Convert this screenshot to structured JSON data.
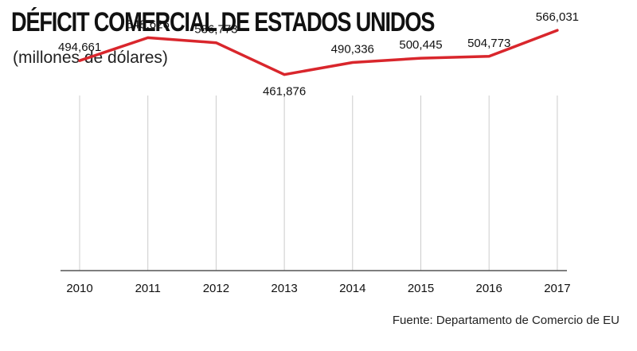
{
  "title": "DÉFICIT COMERCIAL DE ESTADOS UNIDOS",
  "subtitle": "(millones de dólares)",
  "source": "Fuente: Departamento de Comercio de EU",
  "colors": {
    "line": "#d9262c",
    "axis": "#555555",
    "grid": "#cccccc",
    "text": "#111111"
  },
  "chart_data": {
    "type": "line",
    "title": "DÉFICIT COMERCIAL DE ESTADOS UNIDOS",
    "subtitle": "(millones de dólares)",
    "xlabel": "",
    "ylabel": "",
    "categories": [
      "2010",
      "2011",
      "2012",
      "2013",
      "2014",
      "2015",
      "2016",
      "2017"
    ],
    "data_labels": [
      "494,661",
      "548,626",
      "536,773",
      "461,876",
      "490,336",
      "500,445",
      "504,773",
      "566,031"
    ],
    "series": [
      {
        "values": [
          494661,
          548626,
          536773,
          461876,
          490336,
          500445,
          504773,
          566031
        ]
      }
    ],
    "ylim": [
      0,
      600000
    ],
    "grid": "vertical",
    "legend": "none"
  }
}
